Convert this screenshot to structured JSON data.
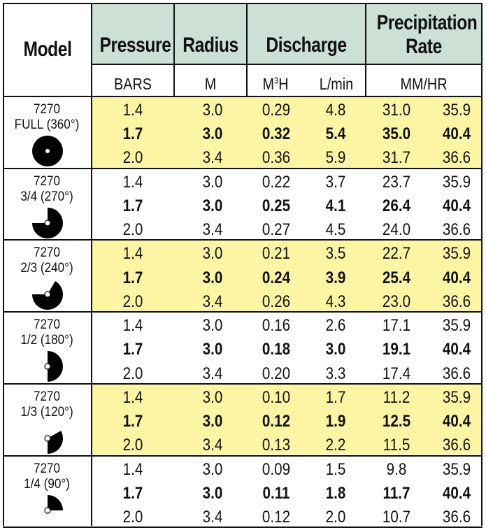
{
  "header": {
    "model": "Model",
    "pressure": "Pressure",
    "radius": "Radius",
    "discharge": "Discharge",
    "precip_line1": "Precipitation",
    "precip_line2": "Rate"
  },
  "units": {
    "pressure": "BARS",
    "radius": "M",
    "discharge_m3h_base": "M",
    "discharge_m3h_sup": "3",
    "discharge_m3h_tail": "H",
    "discharge_lmin": "L/min",
    "precip": "MM/HR"
  },
  "groups": [
    {
      "model": "7270",
      "arc": "FULL (360°)",
      "icon": "full-circle-icon",
      "rows": [
        {
          "pressure": "1.4",
          "radius": "3.0",
          "m3h": "0.29",
          "lmin": "4.8",
          "precip_a": "31.0",
          "precip_b": "35.9"
        },
        {
          "pressure": "1.7",
          "radius": "3.0",
          "m3h": "0.32",
          "lmin": "5.4",
          "precip_a": "35.0",
          "precip_b": "40.4"
        },
        {
          "pressure": "2.0",
          "radius": "3.4",
          "m3h": "0.36",
          "lmin": "5.9",
          "precip_a": "31.7",
          "precip_b": "36.6"
        }
      ]
    },
    {
      "model": "7270",
      "arc": "3/4 (270°)",
      "icon": "three-quarter-arc-icon",
      "rows": [
        {
          "pressure": "1.4",
          "radius": "3.0",
          "m3h": "0.22",
          "lmin": "3.7",
          "precip_a": "23.7",
          "precip_b": "35.9"
        },
        {
          "pressure": "1.7",
          "radius": "3.0",
          "m3h": "0.25",
          "lmin": "4.1",
          "precip_a": "26.4",
          "precip_b": "40.4"
        },
        {
          "pressure": "2.0",
          "radius": "3.4",
          "m3h": "0.27",
          "lmin": "4.5",
          "precip_a": "24.0",
          "precip_b": "36.6"
        }
      ]
    },
    {
      "model": "7270",
      "arc": "2/3 (240°)",
      "icon": "two-thirds-arc-icon",
      "rows": [
        {
          "pressure": "1.4",
          "radius": "3.0",
          "m3h": "0.21",
          "lmin": "3.5",
          "precip_a": "22.7",
          "precip_b": "35.9"
        },
        {
          "pressure": "1.7",
          "radius": "3.0",
          "m3h": "0.24",
          "lmin": "3.9",
          "precip_a": "25.4",
          "precip_b": "40.4"
        },
        {
          "pressure": "2.0",
          "radius": "3.4",
          "m3h": "0.26",
          "lmin": "4.3",
          "precip_a": "23.0",
          "precip_b": "36.6"
        }
      ]
    },
    {
      "model": "7270",
      "arc": "1/2 (180°)",
      "icon": "half-arc-icon",
      "rows": [
        {
          "pressure": "1.4",
          "radius": "3.0",
          "m3h": "0.16",
          "lmin": "2.6",
          "precip_a": "17.1",
          "precip_b": "35.9"
        },
        {
          "pressure": "1.7",
          "radius": "3.0",
          "m3h": "0.18",
          "lmin": "3.0",
          "precip_a": "19.1",
          "precip_b": "40.4"
        },
        {
          "pressure": "2.0",
          "radius": "3.4",
          "m3h": "0.20",
          "lmin": "3.3",
          "precip_a": "17.4",
          "precip_b": "36.6"
        }
      ]
    },
    {
      "model": "7270",
      "arc": "1/3 (120°)",
      "icon": "one-third-arc-icon",
      "rows": [
        {
          "pressure": "1.4",
          "radius": "3.0",
          "m3h": "0.10",
          "lmin": "1.7",
          "precip_a": "11.2",
          "precip_b": "35.9"
        },
        {
          "pressure": "1.7",
          "radius": "3.0",
          "m3h": "0.12",
          "lmin": "1.9",
          "precip_a": "12.5",
          "precip_b": "40.4"
        },
        {
          "pressure": "2.0",
          "radius": "3.4",
          "m3h": "0.13",
          "lmin": "2.2",
          "precip_a": "11.5",
          "precip_b": "36.6"
        }
      ]
    },
    {
      "model": "7270",
      "arc": "1/4 (90°)",
      "icon": "quarter-arc-icon",
      "rows": [
        {
          "pressure": "1.4",
          "radius": "3.0",
          "m3h": "0.09",
          "lmin": "1.5",
          "precip_a": "9.8",
          "precip_b": "35.9"
        },
        {
          "pressure": "1.7",
          "radius": "3.0",
          "m3h": "0.11",
          "lmin": "1.8",
          "precip_a": "11.7",
          "precip_b": "40.4"
        },
        {
          "pressure": "2.0",
          "radius": "3.4",
          "m3h": "0.12",
          "lmin": "2.0",
          "precip_a": "10.7",
          "precip_b": "36.6"
        }
      ]
    }
  ],
  "colors": {
    "header_bg": "#cde0d6",
    "highlight_bg": "#fcf5a4",
    "rule": "#111111"
  }
}
